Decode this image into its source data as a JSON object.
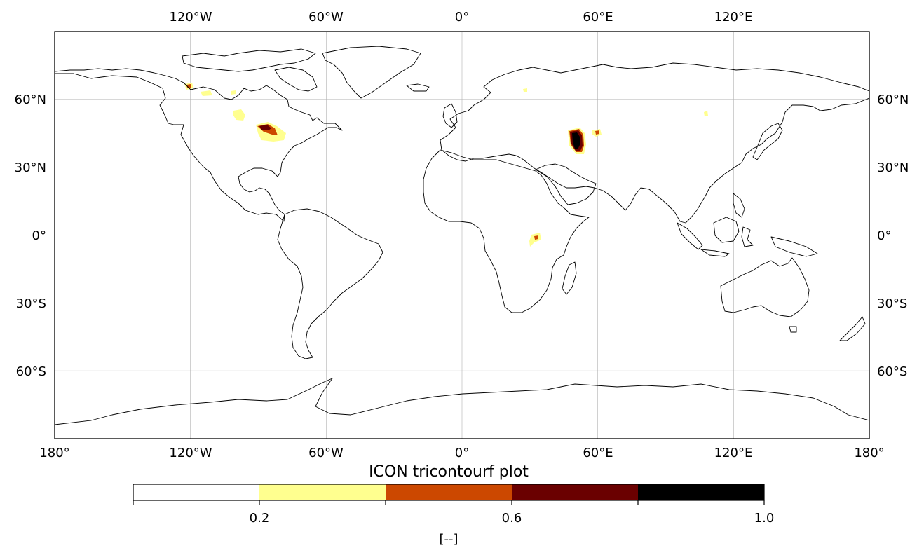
{
  "title": "ICON tricontourf plot",
  "map": {
    "projection": "PlateCarree",
    "lon_range": [
      -180,
      180
    ],
    "lat_range": [
      -90,
      90
    ],
    "gridlines": true,
    "top_lon_labels": [
      "120°W",
      "60°W",
      "0°",
      "60°E",
      "120°E"
    ],
    "bottom_lon_labels": [
      "180°",
      "120°W",
      "60°W",
      "0°",
      "60°E",
      "120°E",
      "180°"
    ],
    "lat_labels": [
      "60°N",
      "30°N",
      "0°",
      "30°S",
      "60°S"
    ],
    "colors": {
      "coastline": "#000000",
      "grid": "#b0b0b0"
    }
  },
  "colorbar": {
    "levels": [
      0.0,
      0.2,
      0.4,
      0.6,
      0.8,
      1.0
    ],
    "colors": [
      "#ffffff",
      "#ffff8f",
      "#cc4800",
      "#6a0000",
      "#000000"
    ],
    "tick_labels": [
      "0.2",
      "0.6",
      "1.0"
    ],
    "unit_label": "[--]"
  },
  "chart_data": {
    "type": "filled-contour-map",
    "title": "ICON tricontourf plot",
    "levels": [
      0.0,
      0.2,
      0.4,
      0.6,
      0.8,
      1.0
    ],
    "regions": [
      {
        "name": "caspian-region",
        "lon": 51,
        "lat": 42,
        "max_value": 1.0
      },
      {
        "name": "aral-region",
        "lon": 60,
        "lat": 45,
        "max_value": 0.5
      },
      {
        "name": "great-lakes-region",
        "lon": -85,
        "lat": 45,
        "max_value": 0.7
      },
      {
        "name": "lake-winnipeg-region",
        "lon": -98,
        "lat": 52,
        "max_value": 0.3
      },
      {
        "name": "canada-north-region",
        "lon": -120,
        "lat": 65,
        "max_value": 0.6
      },
      {
        "name": "great-bear-region",
        "lon": -112,
        "lat": 62,
        "max_value": 0.3
      },
      {
        "name": "baikal-region",
        "lon": 108,
        "lat": 53,
        "max_value": 0.25
      },
      {
        "name": "victoria-region",
        "lon": 33,
        "lat": -1,
        "max_value": 0.6
      }
    ]
  }
}
